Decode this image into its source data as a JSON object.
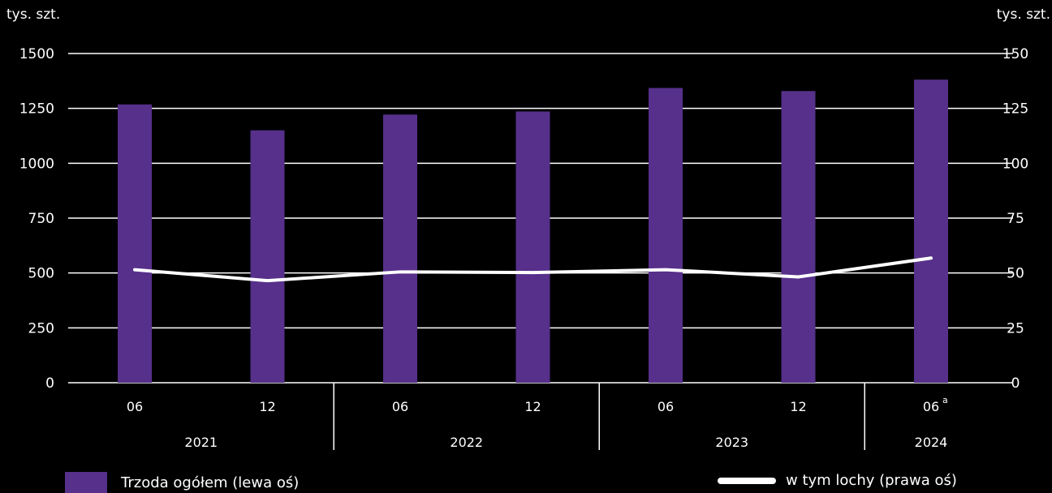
{
  "chart_data": {
    "type": "bar",
    "left_axis_unit": "tys. szt.",
    "right_axis_unit": "tys. szt.",
    "left_ylim": [
      0,
      1500
    ],
    "right_ylim": [
      0,
      150
    ],
    "left_ticks": [
      "0",
      "250",
      "500",
      "750",
      "1000",
      "1250",
      "1500"
    ],
    "right_ticks": [
      "0",
      "25",
      "50",
      "75",
      "100",
      "125",
      "150"
    ],
    "categories": [
      "06",
      "12",
      "06",
      "12",
      "06",
      "12",
      "06"
    ],
    "category_superscripts": [
      "",
      "",
      "",
      "",
      "",
      "",
      "a"
    ],
    "years": [
      {
        "label": "2021",
        "span": 2
      },
      {
        "label": "2022",
        "span": 2
      },
      {
        "label": "2023",
        "span": 2
      },
      {
        "label": "2024",
        "span": 1
      }
    ],
    "grid": true,
    "series": [
      {
        "name": "Trzoda ogółem (lewa oś)",
        "type": "bar",
        "axis": "left",
        "color": "#56308a",
        "values": [
          1268,
          1150,
          1222,
          1236,
          1343,
          1329,
          1381
        ]
      },
      {
        "name": "w tym lochy (prawa oś)",
        "type": "line",
        "axis": "right",
        "color": "#ffffff",
        "values": [
          51.5,
          46.5,
          50.5,
          50.2,
          51.5,
          48.2,
          56.8
        ]
      }
    ],
    "legend_position": "bottom"
  }
}
